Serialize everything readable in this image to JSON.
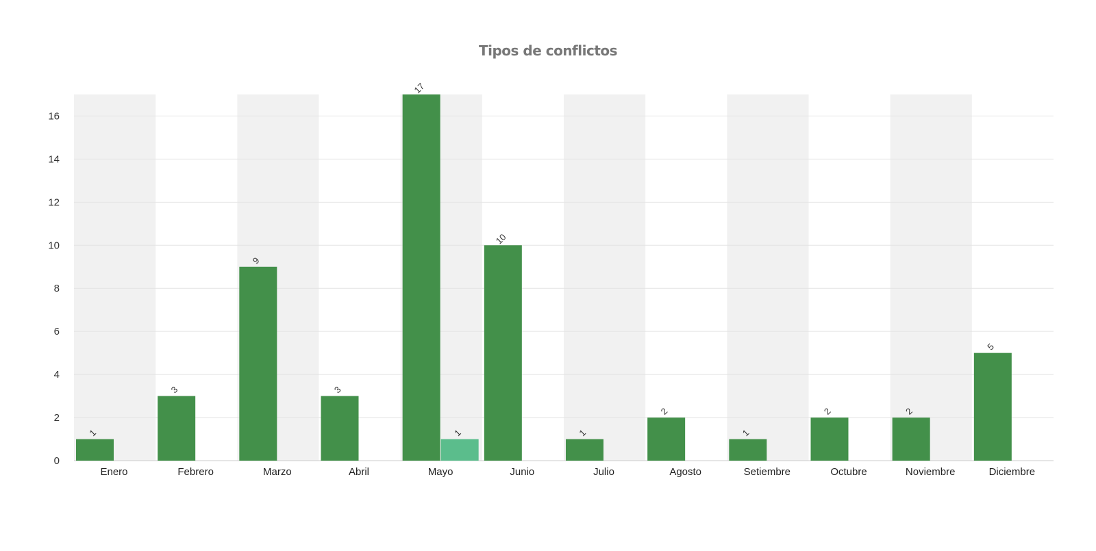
{
  "chart_data": {
    "type": "bar",
    "title": "Tipos de conflictos",
    "categories": [
      "Enero",
      "Febrero",
      "Marzo",
      "Abril",
      "Mayo",
      "Junio",
      "Julio",
      "Agosto",
      "Setiembre",
      "Octubre",
      "Noviembre",
      "Diciembre"
    ],
    "series": [
      {
        "values": [
          1,
          3,
          9,
          3,
          17,
          10,
          1,
          2,
          1,
          2,
          2,
          5
        ],
        "color": "#43904a"
      },
      {
        "values": [
          null,
          null,
          null,
          null,
          1,
          null,
          null,
          null,
          null,
          null,
          null,
          null
        ],
        "color": "#5bbd8c"
      }
    ],
    "ylim": [
      0,
      17
    ],
    "yticks": [
      0,
      2,
      4,
      6,
      8,
      10,
      12,
      14,
      16
    ],
    "xlabel": "",
    "ylabel": "",
    "grid": true,
    "alternating_bands": true,
    "band_color": "#f1f1f1",
    "data_labels": true,
    "legend": "none"
  }
}
